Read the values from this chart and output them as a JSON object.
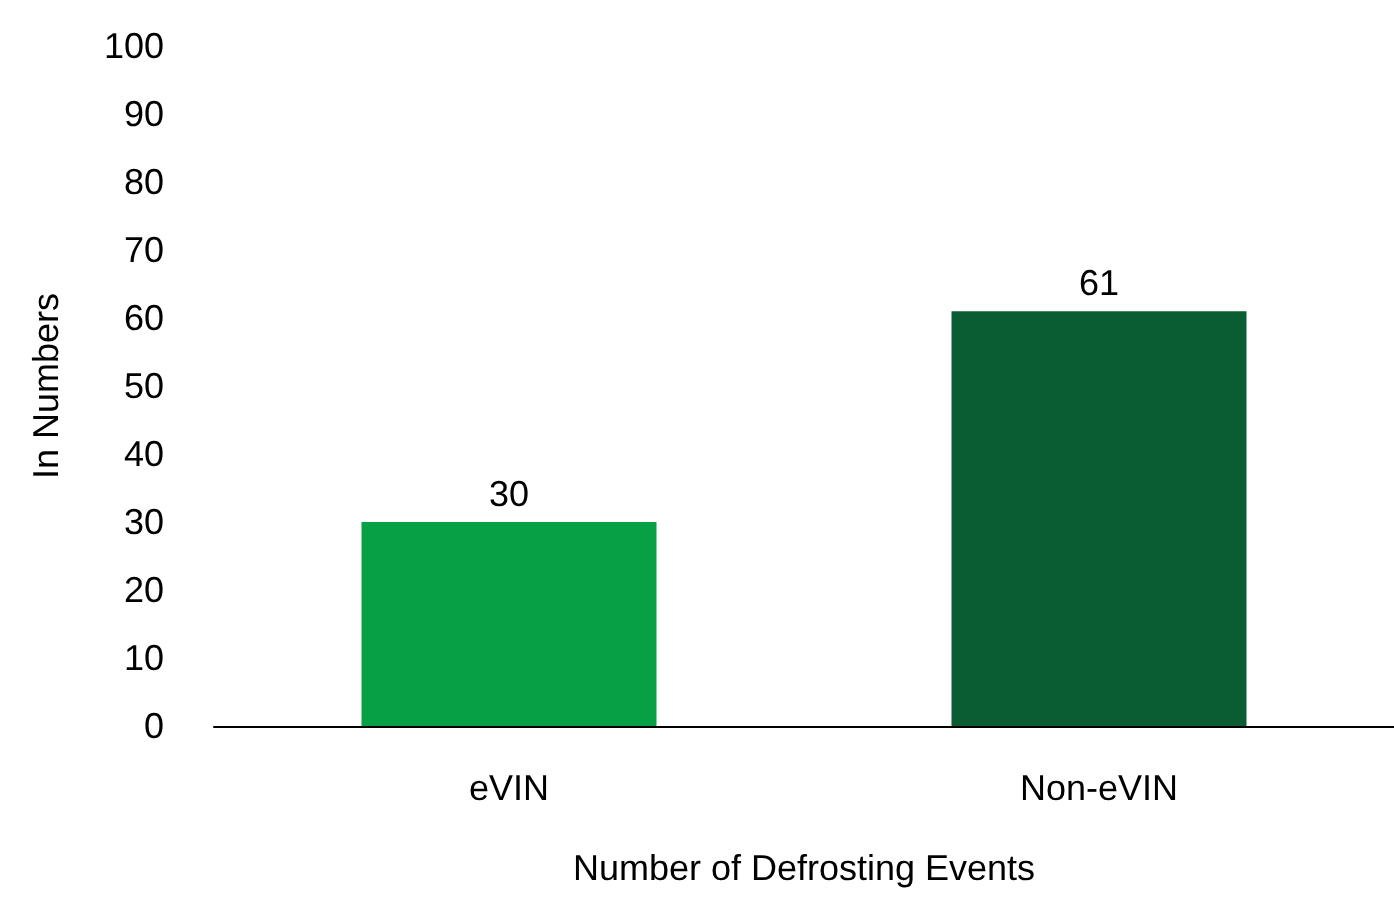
{
  "chart_data": {
    "type": "bar",
    "xlabel": "Number of Defrosting Events",
    "ylabel": "In Numbers",
    "categories": [
      "eVIN",
      "Non-eVIN"
    ],
    "values": [
      30,
      61
    ],
    "colors": [
      "#07a045",
      "#0a5c32"
    ],
    "ylim": [
      0,
      100
    ],
    "yticks": [
      0,
      10,
      20,
      30,
      40,
      50,
      60,
      70,
      80,
      90,
      100
    ],
    "data_labels": true,
    "grid": false
  }
}
